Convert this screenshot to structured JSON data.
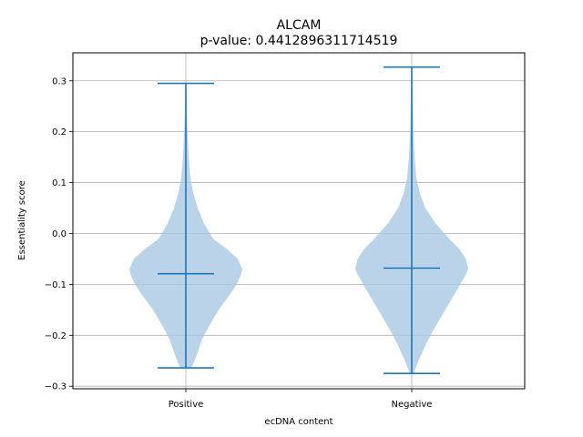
{
  "chart_data": {
    "type": "violin",
    "title": "ALCAM",
    "subtitle": "p-value: 0.4412896311714519",
    "xlabel": "ecDNA content",
    "ylabel": "Essentiality score",
    "categories": [
      "Positive",
      "Negative"
    ],
    "ylim": [
      -0.305,
      0.355
    ],
    "yticks": [
      -0.3,
      -0.2,
      -0.1,
      0.0,
      0.1,
      0.2,
      0.3
    ],
    "ytick_labels": [
      "−0.3",
      "−0.2",
      "−0.1",
      "0.0",
      "0.1",
      "0.2",
      "0.3"
    ],
    "grid": true,
    "color_body": "#a9c8e2",
    "color_lines": "#1f77b4",
    "series": [
      {
        "category": "Positive",
        "min": -0.264,
        "max": 0.295,
        "median": -0.079,
        "density": [
          [
            -0.264,
            0.1
          ],
          [
            -0.24,
            0.19
          ],
          [
            -0.21,
            0.28
          ],
          [
            -0.18,
            0.42
          ],
          [
            -0.15,
            0.58
          ],
          [
            -0.12,
            0.78
          ],
          [
            -0.1,
            0.9
          ],
          [
            -0.08,
            0.98
          ],
          [
            -0.07,
            1.0
          ],
          [
            -0.05,
            0.92
          ],
          [
            -0.03,
            0.72
          ],
          [
            -0.01,
            0.48
          ],
          [
            0.02,
            0.32
          ],
          [
            0.05,
            0.21
          ],
          [
            0.08,
            0.13
          ],
          [
            0.11,
            0.08
          ],
          [
            0.15,
            0.05
          ],
          [
            0.2,
            0.03
          ],
          [
            0.25,
            0.015
          ],
          [
            0.295,
            0.01
          ]
        ]
      },
      {
        "category": "Negative",
        "min": -0.275,
        "max": 0.327,
        "median": -0.068,
        "density": [
          [
            -0.275,
            0.03
          ],
          [
            -0.25,
            0.12
          ],
          [
            -0.22,
            0.24
          ],
          [
            -0.19,
            0.38
          ],
          [
            -0.16,
            0.54
          ],
          [
            -0.13,
            0.7
          ],
          [
            -0.1,
            0.86
          ],
          [
            -0.08,
            0.96
          ],
          [
            -0.07,
            1.0
          ],
          [
            -0.05,
            0.96
          ],
          [
            -0.03,
            0.84
          ],
          [
            -0.01,
            0.66
          ],
          [
            0.02,
            0.42
          ],
          [
            0.05,
            0.24
          ],
          [
            0.08,
            0.14
          ],
          [
            0.11,
            0.08
          ],
          [
            0.15,
            0.05
          ],
          [
            0.2,
            0.03
          ],
          [
            0.25,
            0.02
          ],
          [
            0.3,
            0.012
          ],
          [
            0.327,
            0.01
          ]
        ]
      }
    ]
  }
}
